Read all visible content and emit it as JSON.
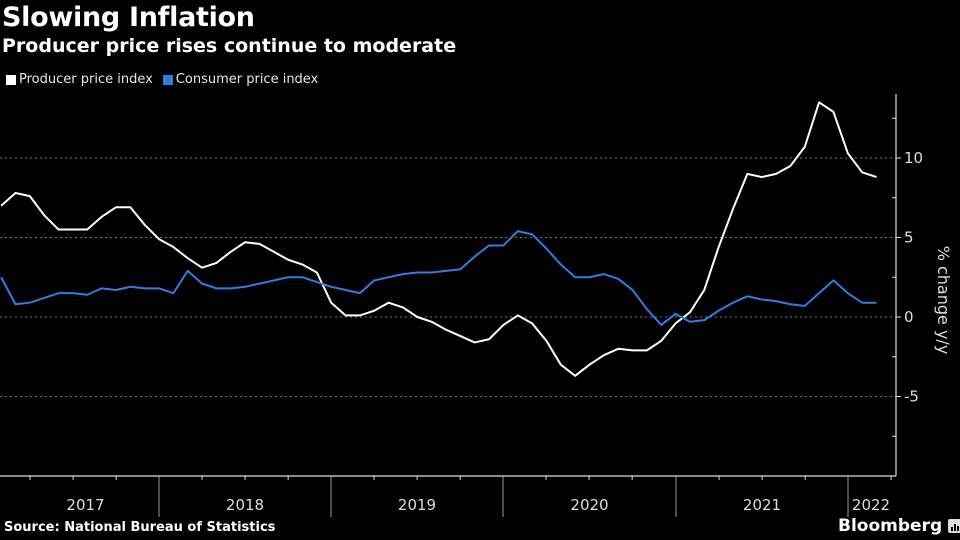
{
  "header": {
    "title": "Slowing Inflation",
    "subtitle": "Producer price rises continue to moderate"
  },
  "footer": {
    "source": "Source: National Bureau of Statistics",
    "brand": "Bloomberg"
  },
  "chart_data": {
    "type": "line",
    "title": "Slowing Inflation",
    "subtitle": "Producer price rises continue to moderate",
    "xlabel": "",
    "ylabel": "% change y/y",
    "ylim": [
      -10,
      14
    ],
    "yticks": [
      10,
      5,
      0,
      -5
    ],
    "ytick_labels": [
      "10",
      "5",
      "0",
      "-5"
    ],
    "xlim": [
      "2017-01",
      "2022-04"
    ],
    "xtick_labels": [
      "2017",
      "2018",
      "2019",
      "2020",
      "2021",
      "2022"
    ],
    "grid": "horizontal dotted",
    "y_axis_side": "right",
    "legend_position": "top-left",
    "x": [
      "2017-02",
      "2017-03",
      "2017-04",
      "2017-05",
      "2017-06",
      "2017-07",
      "2017-08",
      "2017-09",
      "2017-10",
      "2017-11",
      "2017-12",
      "2018-01",
      "2018-02",
      "2018-03",
      "2018-04",
      "2018-05",
      "2018-06",
      "2018-07",
      "2018-08",
      "2018-09",
      "2018-10",
      "2018-11",
      "2018-12",
      "2019-01",
      "2019-02",
      "2019-03",
      "2019-04",
      "2019-05",
      "2019-06",
      "2019-07",
      "2019-08",
      "2019-09",
      "2019-10",
      "2019-11",
      "2019-12",
      "2020-01",
      "2020-02",
      "2020-03",
      "2020-04",
      "2020-05",
      "2020-06",
      "2020-07",
      "2020-08",
      "2020-09",
      "2020-10",
      "2020-11",
      "2020-12",
      "2021-01",
      "2021-02",
      "2021-03",
      "2021-04",
      "2021-05",
      "2021-06",
      "2021-07",
      "2021-08",
      "2021-09",
      "2021-10",
      "2021-11",
      "2021-12",
      "2022-01",
      "2022-02",
      "2022-03"
    ],
    "series": [
      {
        "name": "Producer price index",
        "color": "#ffffff",
        "values": [
          7.0,
          7.8,
          7.6,
          6.4,
          5.5,
          5.5,
          5.5,
          6.3,
          6.9,
          6.9,
          5.8,
          4.9,
          4.4,
          3.7,
          3.1,
          3.4,
          4.1,
          4.7,
          4.6,
          4.1,
          3.6,
          3.3,
          2.8,
          0.9,
          0.1,
          0.1,
          0.4,
          0.9,
          0.6,
          0.0,
          -0.3,
          -0.8,
          -1.2,
          -1.6,
          -1.4,
          -0.5,
          0.1,
          -0.4,
          -1.5,
          -3.0,
          -3.7,
          -3.0,
          -2.4,
          -2.0,
          -2.1,
          -2.1,
          -1.5,
          -0.4,
          0.3,
          1.7,
          4.4,
          6.8,
          9.0,
          8.8,
          9.0,
          9.5,
          10.7,
          13.5,
          12.9,
          10.3,
          9.1,
          8.8
        ]
      },
      {
        "name": "Consumer price index",
        "color": "#2f7de1",
        "values": [
          2.5,
          0.8,
          0.9,
          1.2,
          1.5,
          1.5,
          1.4,
          1.8,
          1.7,
          1.9,
          1.8,
          1.8,
          1.5,
          2.9,
          2.1,
          1.8,
          1.8,
          1.9,
          2.1,
          2.3,
          2.5,
          2.5,
          2.2,
          1.9,
          1.7,
          1.5,
          2.3,
          2.5,
          2.7,
          2.8,
          2.8,
          2.9,
          3.0,
          3.8,
          4.5,
          4.5,
          5.4,
          5.2,
          4.3,
          3.3,
          2.5,
          2.5,
          2.7,
          2.4,
          1.7,
          0.5,
          -0.5,
          0.2,
          -0.3,
          -0.2,
          0.4,
          0.9,
          1.3,
          1.1,
          1.0,
          0.8,
          0.7,
          1.5,
          2.3,
          1.5,
          0.9,
          0.9
        ]
      }
    ]
  }
}
